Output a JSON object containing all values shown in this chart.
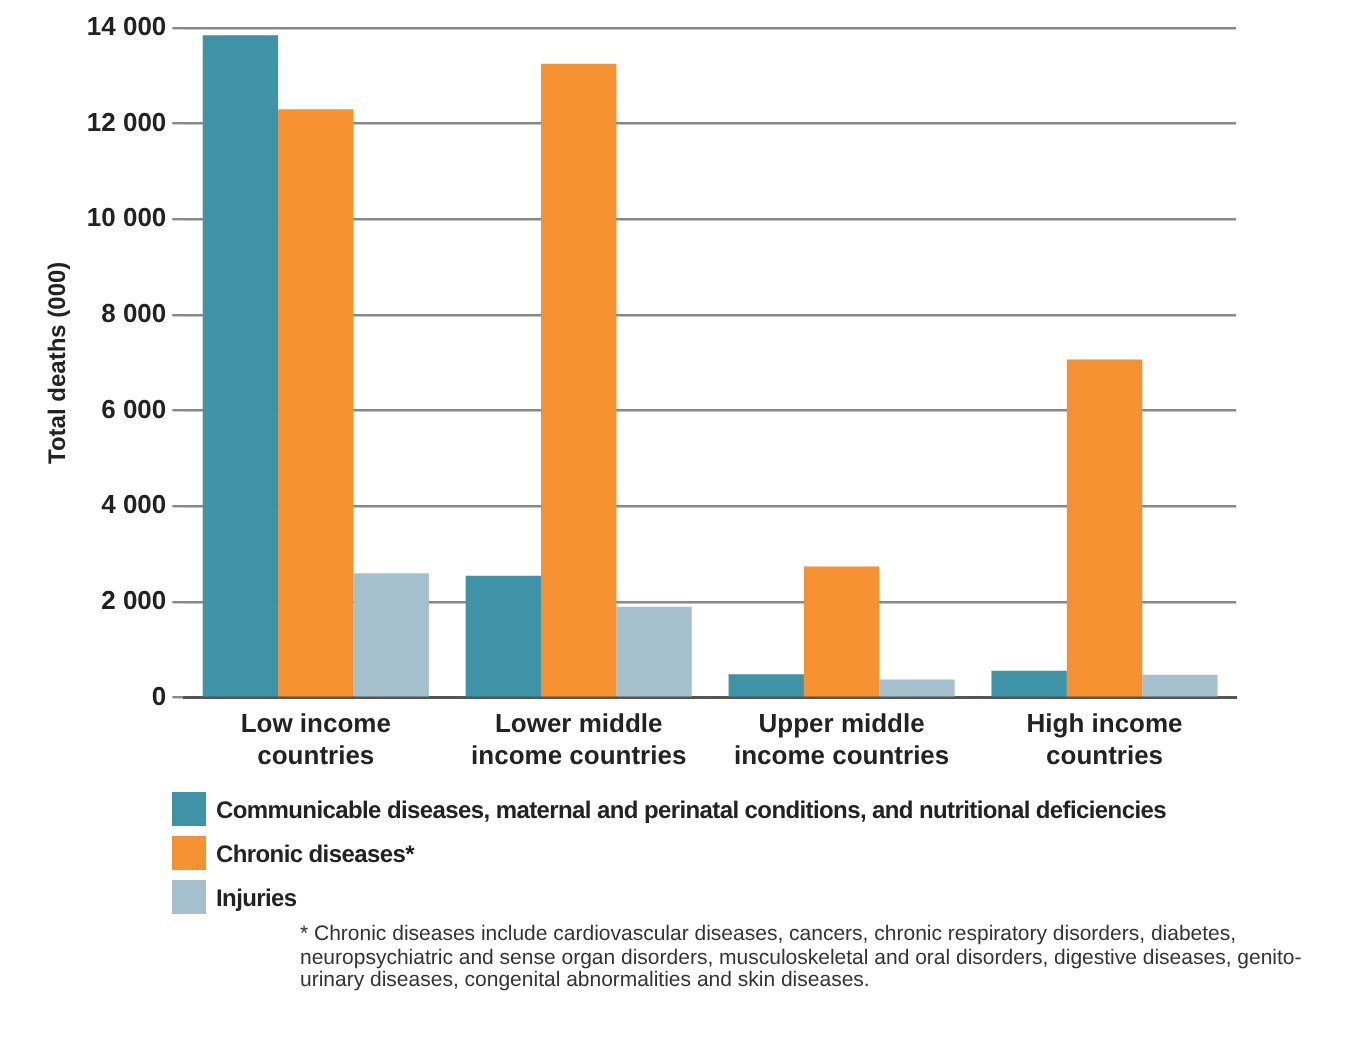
{
  "chart_data": {
    "type": "bar",
    "ylabel": "Total deaths (000)",
    "categories": [
      "Low income countries",
      "Lower middle income countries",
      "Upper middle income countries",
      "High income countries"
    ],
    "series": [
      {
        "name": "Communicable diseases, maternal and perinatal conditions, and nutritional deficiencies",
        "color": "#3f93a7",
        "values": [
          13850,
          2550,
          490,
          560
        ]
      },
      {
        "name": "Chronic diseases*",
        "color": "#f59131",
        "values": [
          12300,
          13250,
          2740,
          7070
        ]
      },
      {
        "name": "Injuries",
        "color": "#a4c0cd",
        "values": [
          2600,
          1900,
          380,
          480
        ]
      }
    ],
    "ylim": [
      0,
      14000
    ],
    "yticks": [
      {
        "value": 0,
        "label": "0"
      },
      {
        "value": 2000,
        "label": "2 000"
      },
      {
        "value": 4000,
        "label": "4 000"
      },
      {
        "value": 6000,
        "label": "6 000"
      },
      {
        "value": 8000,
        "label": "8 000"
      },
      {
        "value": 10000,
        "label": "10 000"
      },
      {
        "value": 12000,
        "label": "12 000"
      },
      {
        "value": 14000,
        "label": "14 000"
      }
    ],
    "grid": "y",
    "legend": "bottom",
    "annotations": [
      "* Chronic diseases include cardiovascular diseases, cancers, chronic respiratory disorders, diabetes, neuropsychiatric and sense organ disorders, musculoskeletal and oral disorders, digestive diseases, genito-urinary diseases, congenital abnormalities and skin diseases."
    ]
  }
}
